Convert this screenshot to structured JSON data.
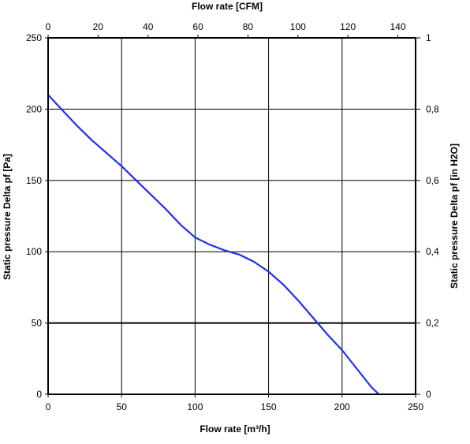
{
  "chart_data": {
    "type": "line",
    "title": "",
    "xlabel": "Flow rate [m³/h]",
    "ylabel": "Static pressure Delta pf [Pa]",
    "top_xlabel": "Flow rate [CFM]",
    "right_ylabel": "Static pressure Delta pf [in H2O]",
    "xlim": [
      0,
      250
    ],
    "ylim": [
      0,
      250
    ],
    "top_xlim_cfm": [
      0,
      147.1
    ],
    "right_ylim_inh2o": [
      0,
      1.0
    ],
    "x_ticks": [
      "0",
      "50",
      "100",
      "150",
      "200",
      "250"
    ],
    "y_ticks": [
      "0",
      "50",
      "100",
      "150",
      "200",
      "250"
    ],
    "top_x_ticks": [
      "0",
      "20",
      "40",
      "60",
      "80",
      "100",
      "120",
      "140"
    ],
    "right_y_ticks": [
      "0",
      "0,2",
      "0,4",
      "0,6",
      "0,8",
      "1"
    ],
    "grid": true,
    "series": [
      {
        "color": "#1e2ff0",
        "x": [
          0,
          10,
          20,
          30,
          40,
          50,
          60,
          70,
          80,
          90,
          100,
          110,
          120,
          130,
          140,
          150,
          160,
          170,
          180,
          190,
          200,
          210,
          220,
          225
        ],
        "y": [
          210,
          199,
          188,
          178,
          169,
          160,
          150,
          140,
          130,
          119,
          110,
          105,
          101,
          98,
          93,
          86,
          77,
          66,
          54,
          42,
          31,
          18,
          5,
          0
        ]
      }
    ],
    "colors": {
      "axis": "#000000",
      "grid": "#000000",
      "line": "#1e2ff0"
    }
  }
}
